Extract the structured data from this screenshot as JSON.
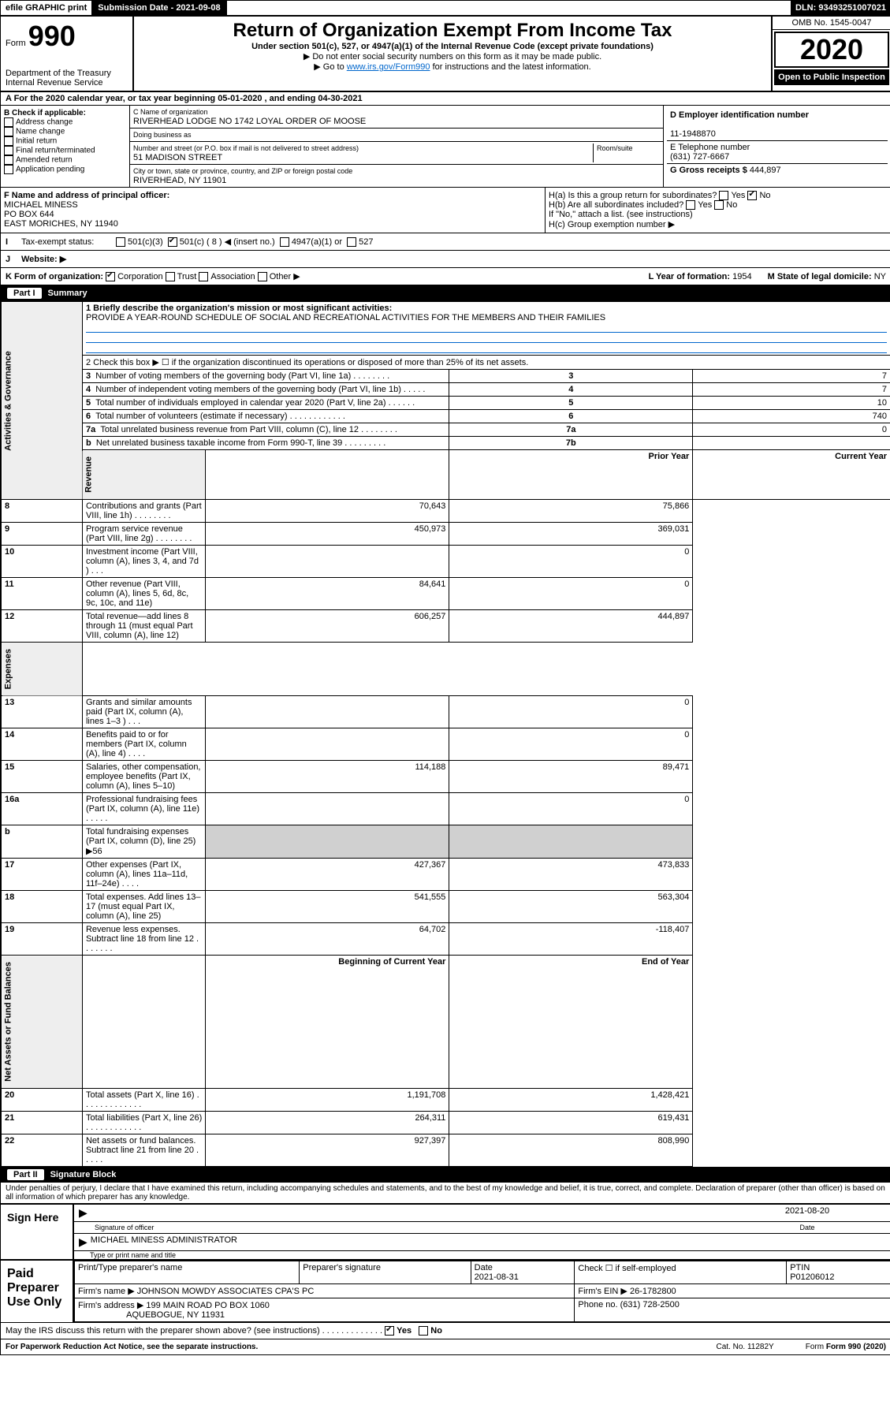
{
  "topbar": {
    "efile": "efile GRAPHIC print",
    "submission": "Submission Date - 2021-09-08",
    "dln": "DLN: 93493251007021"
  },
  "header": {
    "form_prefix": "Form",
    "form_num": "990",
    "title": "Return of Organization Exempt From Income Tax",
    "subtitle": "Under section 501(c), 527, or 4947(a)(1) of the Internal Revenue Code (except private foundations)",
    "note1": "▶ Do not enter social security numbers on this form as it may be made public.",
    "note2_pre": "▶ Go to ",
    "note2_link": "www.irs.gov/Form990",
    "note2_post": " for instructions and the latest information.",
    "dept": "Department of the Treasury\nInternal Revenue Service",
    "omb": "OMB No. 1545-0047",
    "year": "2020",
    "open": "Open to Public Inspection"
  },
  "section_a": "A For the 2020 calendar year, or tax year beginning 05-01-2020   , and ending 04-30-2021",
  "box_b": {
    "title": "B Check if applicable:",
    "opts": [
      "Address change",
      "Name change",
      "Initial return",
      "Final return/terminated",
      "Amended return",
      "Application pending"
    ]
  },
  "box_c": {
    "name_lbl": "C Name of organization",
    "name": "RIVERHEAD LODGE NO 1742 LOYAL ORDER OF MOOSE",
    "dba_lbl": "Doing business as",
    "addr_lbl": "Number and street (or P.O. box if mail is not delivered to street address)",
    "room_lbl": "Room/suite",
    "addr": "51 MADISON STREET",
    "city_lbl": "City or town, state or province, country, and ZIP or foreign postal code",
    "city": "RIVERHEAD, NY  11901"
  },
  "box_d": {
    "lbl": "D Employer identification number",
    "val": "11-1948870"
  },
  "box_e": {
    "lbl": "E Telephone number",
    "val": "(631) 727-6667"
  },
  "box_g": {
    "lbl": "G Gross receipts $",
    "val": "444,897"
  },
  "box_f": {
    "lbl": "F Name and address of principal officer:",
    "name": "MICHAEL MINESS",
    "addr1": "PO BOX 644",
    "addr2": "EAST MORICHES, NY  11940"
  },
  "box_h": {
    "a": "H(a)  Is this a group return for subordinates?",
    "b": "H(b)  Are all subordinates included?",
    "note": "If \"No,\" attach a list. (see instructions)",
    "c": "H(c)  Group exemption number ▶",
    "yes": "Yes",
    "no": "No"
  },
  "row_i": {
    "lbl": "I",
    "txt": "Tax-exempt status:",
    "o1": "501(c)(3)",
    "o2": "501(c) ( 8 ) ◀ (insert no.)",
    "o3": "4947(a)(1) or",
    "o4": "527"
  },
  "row_j": {
    "lbl": "J",
    "txt": "Website: ▶"
  },
  "row_k": {
    "lbl": "K Form of organization:",
    "o1": "Corporation",
    "o2": "Trust",
    "o3": "Association",
    "o4": "Other ▶"
  },
  "row_l": {
    "lbl": "L Year of formation:",
    "val": "1954"
  },
  "row_m": {
    "lbl": "M State of legal domicile:",
    "val": "NY"
  },
  "part1": {
    "num": "Part I",
    "title": "Summary"
  },
  "summary": {
    "q1": "1  Briefly describe the organization's mission or most significant activities:",
    "mission": "PROVIDE A YEAR-ROUND SCHEDULE OF SOCIAL AND RECREATIONAL ACTIVITIES FOR THE MEMBERS AND THEIR FAMILIES",
    "q2": "2  Check this box ▶ ☐  if the organization discontinued its operations or disposed of more than 25% of its net assets.",
    "rows_gov": [
      {
        "n": "3",
        "t": "Number of voting members of the governing body (Part VI, line 1a)   .    .    .    .    .    .    .    .",
        "b": "3",
        "v": "7"
      },
      {
        "n": "4",
        "t": "Number of independent voting members of the governing body (Part VI, line 1b)  .    .    .    .    .",
        "b": "4",
        "v": "7"
      },
      {
        "n": "5",
        "t": "Total number of individuals employed in calendar year 2020 (Part V, line 2a)  .    .    .    .    .    .",
        "b": "5",
        "v": "10"
      },
      {
        "n": "6",
        "t": "Total number of volunteers (estimate if necessary)  .    .    .    .    .    .    .    .    .    .    .    .",
        "b": "6",
        "v": "740"
      },
      {
        "n": "7a",
        "t": "Total unrelated business revenue from Part VIII, column (C), line 12  .    .    .    .    .    .    .    .",
        "b": "7a",
        "v": "0"
      },
      {
        "n": "b",
        "t": "Net unrelated business taxable income from Form 990-T, line 39  .    .    .    .    .    .    .    .    .",
        "b": "7b",
        "v": ""
      }
    ],
    "col_prior": "Prior Year",
    "col_curr": "Current Year",
    "rows_rev": [
      {
        "n": "8",
        "t": "Contributions and grants (Part VIII, line 1h)  .    .    .    .    .    .    .    .",
        "p": "70,643",
        "c": "75,866"
      },
      {
        "n": "9",
        "t": "Program service revenue (Part VIII, line 2g)  .    .    .    .    .    .    .    .",
        "p": "450,973",
        "c": "369,031"
      },
      {
        "n": "10",
        "t": "Investment income (Part VIII, column (A), lines 3, 4, and 7d )  .    .    .",
        "p": "",
        "c": "0"
      },
      {
        "n": "11",
        "t": "Other revenue (Part VIII, column (A), lines 5, 6d, 8c, 9c, 10c, and 11e)",
        "p": "84,641",
        "c": "0"
      },
      {
        "n": "12",
        "t": "Total revenue—add lines 8 through 11 (must equal Part VIII, column (A), line 12)",
        "p": "606,257",
        "c": "444,897"
      }
    ],
    "rows_exp": [
      {
        "n": "13",
        "t": "Grants and similar amounts paid (Part IX, column (A), lines 1–3 )  .    .    .",
        "p": "",
        "c": "0"
      },
      {
        "n": "14",
        "t": "Benefits paid to or for members (Part IX, column (A), line 4)  .    .    .    .",
        "p": "",
        "c": "0"
      },
      {
        "n": "15",
        "t": "Salaries, other compensation, employee benefits (Part IX, column (A), lines 5–10)",
        "p": "114,188",
        "c": "89,471"
      },
      {
        "n": "16a",
        "t": "Professional fundraising fees (Part IX, column (A), line 11e)  .    .    .    .    .",
        "p": "",
        "c": "0"
      },
      {
        "n": "b",
        "t": "Total fundraising expenses (Part IX, column (D), line 25) ▶56",
        "p": "–shade–",
        "c": "–shade–"
      },
      {
        "n": "17",
        "t": "Other expenses (Part IX, column (A), lines 11a–11d, 11f–24e)  .    .    .    .",
        "p": "427,367",
        "c": "473,833"
      },
      {
        "n": "18",
        "t": "Total expenses. Add lines 13–17 (must equal Part IX, column (A), line 25)",
        "p": "541,555",
        "c": "563,304"
      },
      {
        "n": "19",
        "t": "Revenue less expenses. Subtract line 18 from line 12  .    .    .    .    .    .    .",
        "p": "64,702",
        "c": "-118,407"
      }
    ],
    "col_beg": "Beginning of Current Year",
    "col_end": "End of Year",
    "rows_net": [
      {
        "n": "20",
        "t": "Total assets (Part X, line 16)  .    .    .    .    .    .    .    .    .    .    .    .    .",
        "p": "1,191,708",
        "c": "1,428,421"
      },
      {
        "n": "21",
        "t": "Total liabilities (Part X, line 26)  .    .    .    .    .    .    .    .    .    .    .    .",
        "p": "264,311",
        "c": "619,431"
      },
      {
        "n": "22",
        "t": "Net assets or fund balances. Subtract line 21 from line 20  .    .    .    .    .",
        "p": "927,397",
        "c": "808,990"
      }
    ],
    "vtabs": {
      "gov": "Activities & Governance",
      "rev": "Revenue",
      "exp": "Expenses",
      "net": "Net Assets or Fund Balances"
    }
  },
  "part2": {
    "num": "Part II",
    "title": "Signature Block"
  },
  "sig": {
    "jurat": "Under penalties of perjury, I declare that I have examined this return, including accompanying schedules and statements, and to the best of my knowledge and belief, it is true, correct, and complete. Declaration of preparer (other than officer) is based on all information of which preparer has any knowledge.",
    "here": "Sign Here",
    "date1": "2021-08-20",
    "sig_lbl": "Signature of officer",
    "date_lbl": "Date",
    "name": "MICHAEL MINESS  ADMINISTRATOR",
    "name_lbl": "Type or print name and title",
    "paid": "Paid Preparer Use Only",
    "h1": "Print/Type preparer's name",
    "h2": "Preparer's signature",
    "h3": "Date",
    "h4": "Check ☐ if self-employed",
    "h5": "PTIN",
    "pdate": "2021-08-31",
    "ptin": "P01206012",
    "firm_lbl": "Firm's name    ▶",
    "firm": "JOHNSON MOWDY ASSOCIATES CPA'S PC",
    "ein_lbl": "Firm's EIN ▶",
    "ein": "26-1782800",
    "faddr_lbl": "Firm's address ▶",
    "faddr1": "199 MAIN ROAD PO BOX 1060",
    "faddr2": "AQUEBOGUE, NY  11931",
    "phone_lbl": "Phone no.",
    "phone": "(631) 728-2500",
    "discuss": "May the IRS discuss this return with the preparer shown above? (see instructions)   .    .    .    .    .    .    .    .    .    .    .    .    .",
    "yes": "Yes",
    "no": "No"
  },
  "footer": {
    "pra": "For Paperwork Reduction Act Notice, see the separate instructions.",
    "cat": "Cat. No. 11282Y",
    "form": "Form 990 (2020)"
  }
}
